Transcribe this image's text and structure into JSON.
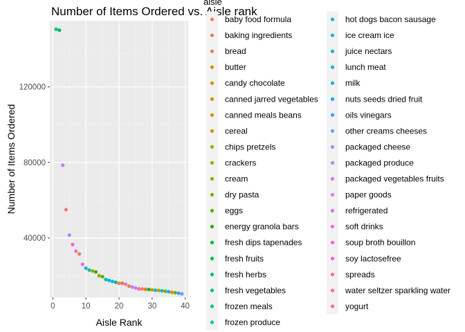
{
  "chart_data": {
    "type": "scatter",
    "title": "Number of Items Ordered vs. Aisle rank",
    "xlabel": "Aisle Rank",
    "ylabel": "Number of Items Ordered",
    "xlim": [
      -0.9,
      40.9
    ],
    "ylim": [
      8500,
      155000
    ],
    "xticks": [
      0,
      10,
      20,
      30,
      40
    ],
    "yticks": [
      40000,
      80000,
      120000
    ],
    "ytick_labels": [
      "40000",
      "80000",
      "120000"
    ],
    "grid": true,
    "legend_title": "aisle",
    "legend_position": "right",
    "legend_columns": 2,
    "categories": [
      "baby food formula",
      "baking ingredients",
      "bread",
      "butter",
      "candy chocolate",
      "canned jarred vegetables",
      "canned meals beans",
      "cereal",
      "chips pretzels",
      "crackers",
      "cream",
      "dry pasta",
      "eggs",
      "energy granola bars",
      "fresh dips tapenades",
      "fresh fruits",
      "fresh herbs",
      "fresh vegetables",
      "frozen meals",
      "frozen produce",
      "hot dogs bacon sausage",
      "ice cream ice",
      "juice nectars",
      "lunch meat",
      "milk",
      "nuts seeds dried fruit",
      "oils vinegars",
      "other creams cheeses",
      "packaged cheese",
      "packaged produce",
      "packaged vegetables fruits",
      "paper goods",
      "refrigerated",
      "soft drinks",
      "soup broth bouillon",
      "soy lactosefree",
      "spreads",
      "water seltzer sparkling water",
      "yogurt"
    ],
    "colors": [
      "#F8766D",
      "#F37B59",
      "#ED813E",
      "#E58700",
      "#DC8D00",
      "#D19300",
      "#C59900",
      "#B79F00",
      "#A9A400",
      "#99A800",
      "#86AC00",
      "#70B000",
      "#53B400",
      "#1FB700",
      "#00BA38",
      "#00BC54",
      "#00BE6A",
      "#00C08B",
      "#00C09F",
      "#00C1AA",
      "#00C0B8",
      "#00BFC4",
      "#00BDD0",
      "#00BADE",
      "#00B6EB",
      "#00B0F6",
      "#35A2FF",
      "#7997FF",
      "#9590FF",
      "#AC88FF",
      "#C77CFF",
      "#D774FD",
      "#E76BF3",
      "#F364E1",
      "#FF61CC",
      "#FF61C3",
      "#FF65AE",
      "#FF6A98",
      "#FB727F"
    ],
    "points": [
      {
        "x": 1,
        "y": 150500,
        "aisle": "fresh vegetables"
      },
      {
        "x": 2,
        "y": 150000,
        "aisle": "fresh fruits"
      },
      {
        "x": 3,
        "y": 78500,
        "aisle": "packaged vegetables fruits"
      },
      {
        "x": 4,
        "y": 55000,
        "aisle": "yogurt"
      },
      {
        "x": 5,
        "y": 41500,
        "aisle": "packaged cheese"
      },
      {
        "x": 6,
        "y": 36500,
        "aisle": "soy lactosefree"
      },
      {
        "x": 7,
        "y": 33000,
        "aisle": "soft drinks"
      },
      {
        "x": 8,
        "y": 31500,
        "aisle": "bread"
      },
      {
        "x": 9,
        "y": 26000,
        "aisle": "refrigerated"
      },
      {
        "x": 10,
        "y": 24000,
        "aisle": "frozen produce"
      },
      {
        "x": 11,
        "y": 23000,
        "aisle": "ice cream ice"
      },
      {
        "x": 12,
        "y": 22500,
        "aisle": "crackers"
      },
      {
        "x": 13,
        "y": 22000,
        "aisle": "energy granola bars"
      },
      {
        "x": 14,
        "y": 20000,
        "aisle": "chips pretzels"
      },
      {
        "x": 15,
        "y": 19500,
        "aisle": "eggs"
      },
      {
        "x": 16,
        "y": 18000,
        "aisle": "frozen meals"
      },
      {
        "x": 17,
        "y": 17500,
        "aisle": "lunch meat"
      },
      {
        "x": 18,
        "y": 17000,
        "aisle": "milk"
      },
      {
        "x": 19,
        "y": 16500,
        "aisle": "fresh herbs"
      },
      {
        "x": 20,
        "y": 16000,
        "aisle": "water seltzer sparkling water"
      },
      {
        "x": 21,
        "y": 16000,
        "aisle": "cereal"
      },
      {
        "x": 22,
        "y": 15500,
        "aisle": "soup broth bouillon"
      },
      {
        "x": 23,
        "y": 14500,
        "aisle": "baking ingredients"
      },
      {
        "x": 24,
        "y": 14000,
        "aisle": "packaged produce"
      },
      {
        "x": 25,
        "y": 13500,
        "aisle": "paper goods"
      },
      {
        "x": 26,
        "y": 13000,
        "aisle": "spreads"
      },
      {
        "x": 27,
        "y": 13000,
        "aisle": "baby food formula"
      },
      {
        "x": 28,
        "y": 12800,
        "aisle": "butter"
      },
      {
        "x": 29,
        "y": 12700,
        "aisle": "fresh dips tapenades"
      },
      {
        "x": 30,
        "y": 12500,
        "aisle": "candy chocolate"
      },
      {
        "x": 31,
        "y": 12300,
        "aisle": "hot dogs bacon sausage"
      },
      {
        "x": 32,
        "y": 12200,
        "aisle": "canned meals beans"
      },
      {
        "x": 33,
        "y": 12000,
        "aisle": "juice nectars"
      },
      {
        "x": 34,
        "y": 11800,
        "aisle": "cream"
      },
      {
        "x": 35,
        "y": 11500,
        "aisle": "nuts seeds dried fruit"
      },
      {
        "x": 36,
        "y": 11200,
        "aisle": "canned jarred vegetables"
      },
      {
        "x": 37,
        "y": 11000,
        "aisle": "dry pasta"
      },
      {
        "x": 38,
        "y": 10700,
        "aisle": "oils vinegars"
      },
      {
        "x": 39,
        "y": 10400,
        "aisle": "other creams cheeses"
      }
    ]
  }
}
